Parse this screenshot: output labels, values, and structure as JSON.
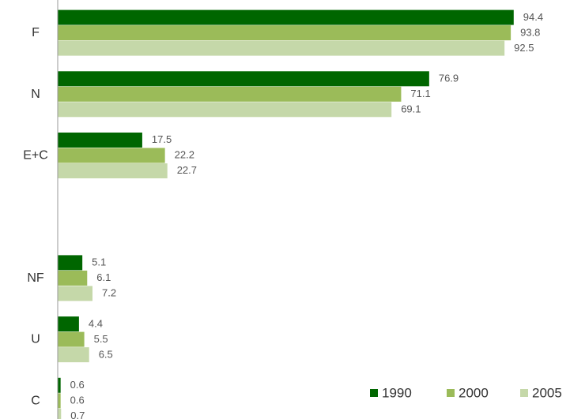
{
  "chart_data": {
    "type": "hbar",
    "categories": [
      "F",
      "N",
      "E+C",
      null,
      "NF",
      "U",
      "C"
    ],
    "series": [
      {
        "name": "1990",
        "color": "#006600",
        "values": [
          94.4,
          76.9,
          17.5,
          null,
          5.1,
          4.4,
          0.6
        ]
      },
      {
        "name": "2000",
        "color": "#9bbb59",
        "values": [
          93.8,
          71.1,
          22.2,
          null,
          6.1,
          5.5,
          0.6
        ]
      },
      {
        "name": "2005",
        "color": "#c5d8a9",
        "values": [
          92.5,
          69.1,
          22.7,
          null,
          7.2,
          6.5,
          0.7
        ]
      }
    ],
    "xlim": [
      0,
      100
    ],
    "legend": "bottom-right"
  }
}
